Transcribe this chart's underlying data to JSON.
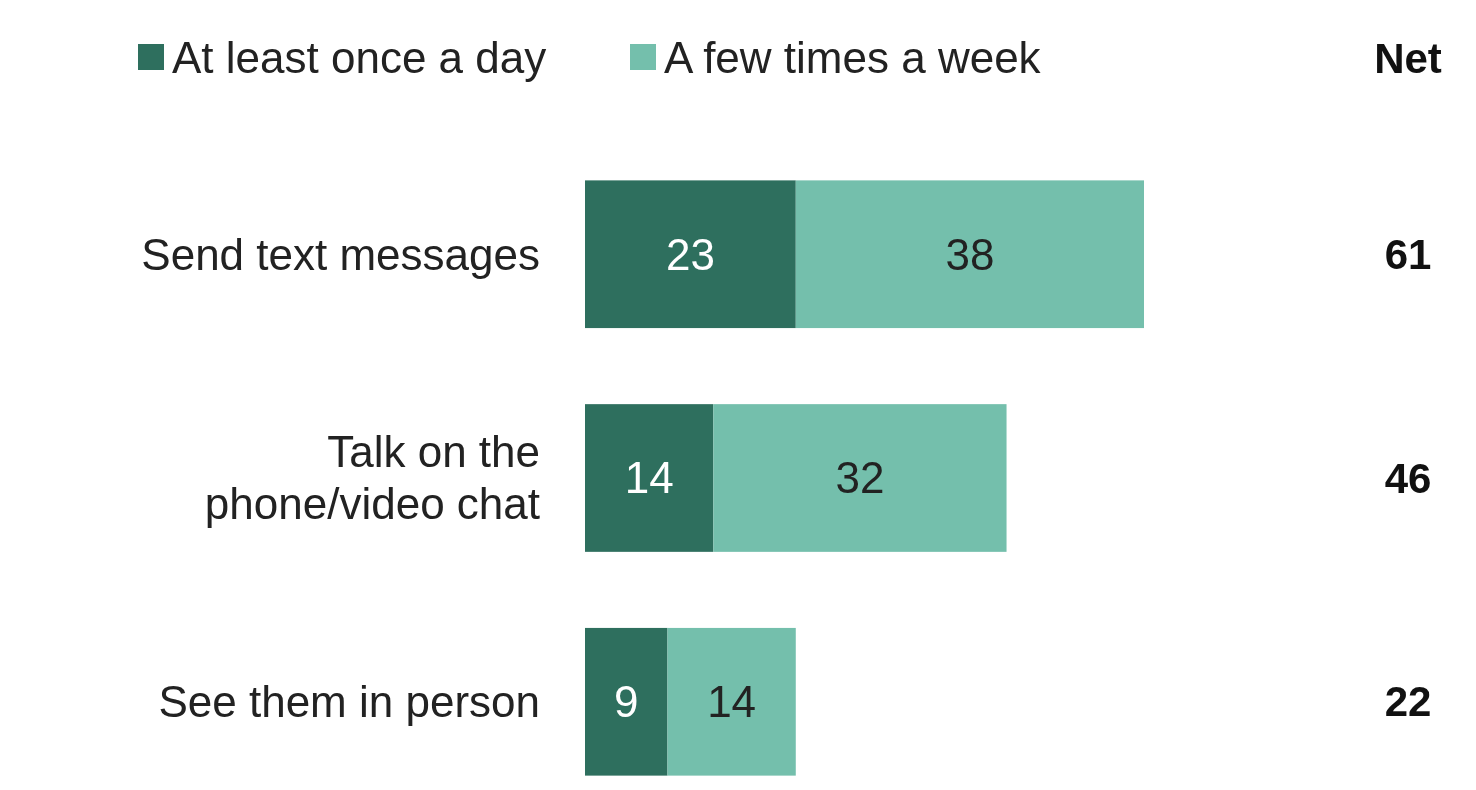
{
  "chart_data": {
    "type": "bar",
    "orientation": "horizontal",
    "stacked": true,
    "categories": [
      "Send text messages",
      "Talk on the phone/video chat",
      "See them in person"
    ],
    "series": [
      {
        "name": "At least once a day",
        "color": "#2e6f5e",
        "values": [
          23,
          14,
          9
        ]
      },
      {
        "name": "A few times a week",
        "color": "#74bfac",
        "values": [
          38,
          32,
          14
        ]
      }
    ],
    "data_labels": true,
    "annotations": [
      "Net",
      "61",
      "46",
      "22"
    ],
    "legend": "top left"
  }
}
